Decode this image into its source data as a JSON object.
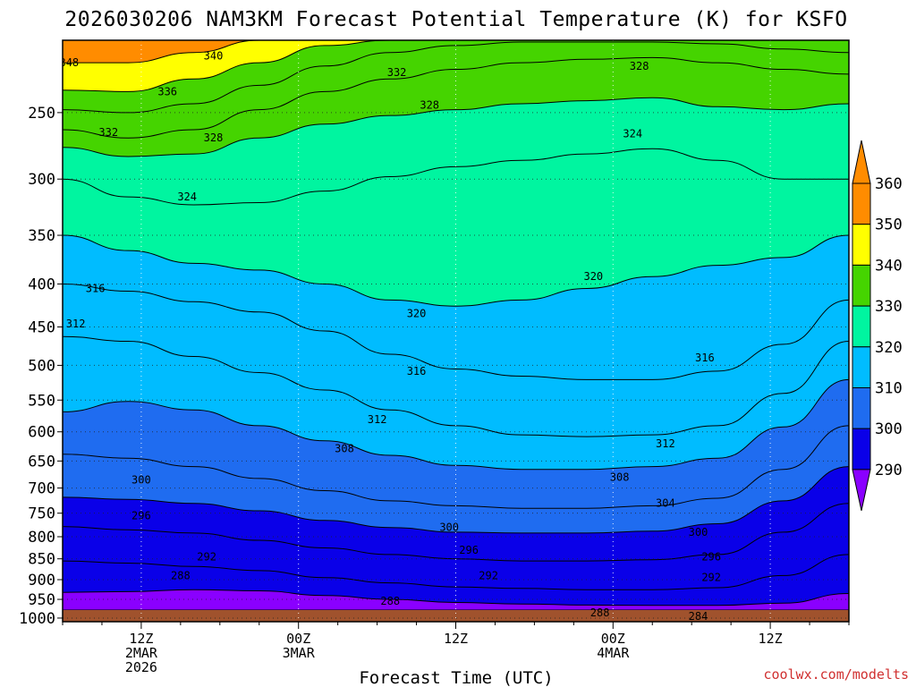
{
  "chart_data": {
    "type": "heatmap",
    "title": "2026030206 NAM3KM Forecast Potential Temperature (K) for KSFO",
    "xlabel": "Forecast Time (UTC)",
    "ylabel": "",
    "y_scale": "log",
    "y_axis": "pressure (hPa), inverted",
    "ylim": [
      1010,
      205
    ],
    "y_ticks": [
      250,
      300,
      350,
      400,
      450,
      500,
      550,
      600,
      650,
      700,
      750,
      800,
      850,
      900,
      950,
      1000
    ],
    "xlim": [
      0,
      60
    ],
    "x_ticks": [
      {
        "hour": 6,
        "lines": [
          "12Z",
          "2MAR",
          "2026"
        ]
      },
      {
        "hour": 18,
        "lines": [
          "00Z",
          "3MAR"
        ]
      },
      {
        "hour": 30,
        "lines": [
          "12Z"
        ]
      },
      {
        "hour": 42,
        "lines": [
          "00Z",
          "4MAR"
        ]
      },
      {
        "hour": 54,
        "lines": [
          "12Z"
        ]
      }
    ],
    "grid": true,
    "colorbar": {
      "levels": [
        290,
        300,
        310,
        320,
        330,
        340,
        350,
        360
      ],
      "colors": [
        "#8a00ff",
        "#0a00e8",
        "#1f6cf0",
        "#00bcff",
        "#00f5a0",
        "#45d400",
        "#ffff00",
        "#ff8c00"
      ],
      "extend": "both",
      "placement": "right"
    },
    "isotherms": [
      {
        "theta": 284,
        "p": [
          1000,
          1000,
          1000,
          1000,
          1000,
          1000,
          1000,
          1000,
          1000,
          1000,
          998,
          996,
          995
        ]
      },
      {
        "theta": 288,
        "p": [
          932,
          930,
          925,
          928,
          940,
          950,
          958,
          962,
          965,
          966,
          966,
          960,
          935
        ]
      },
      {
        "theta": 292,
        "p": [
          855,
          860,
          868,
          878,
          895,
          908,
          918,
          922,
          925,
          925,
          920,
          890,
          840
        ]
      },
      {
        "theta": 296,
        "p": [
          778,
          785,
          792,
          808,
          825,
          840,
          850,
          855,
          855,
          852,
          840,
          790,
          730
        ]
      },
      {
        "theta": 300,
        "p": [
          718,
          722,
          730,
          745,
          765,
          780,
          790,
          792,
          792,
          788,
          772,
          725,
          660
        ]
      },
      {
        "theta": 304,
        "p": [
          638,
          645,
          660,
          682,
          705,
          725,
          735,
          740,
          740,
          735,
          720,
          665,
          590
        ]
      },
      {
        "theta": 308,
        "p": [
          568,
          552,
          565,
          590,
          615,
          640,
          658,
          665,
          665,
          660,
          645,
          592,
          520
        ]
      },
      {
        "theta": 312,
        "p": [
          462,
          468,
          488,
          510,
          535,
          565,
          590,
          605,
          608,
          605,
          590,
          540,
          468
        ]
      },
      {
        "theta": 316,
        "p": [
          400,
          408,
          420,
          432,
          455,
          485,
          505,
          515,
          520,
          520,
          508,
          472,
          418
        ]
      },
      {
        "theta": 320,
        "p": [
          350,
          365,
          378,
          385,
          400,
          418,
          425,
          418,
          405,
          392,
          380,
          372,
          350
        ]
      },
      {
        "theta": 324,
        "p": [
          300,
          315,
          322,
          320,
          310,
          298,
          290,
          285,
          280,
          276,
          285,
          300,
          300
        ]
      },
      {
        "theta": 328,
        "p": [
          275,
          282,
          280,
          268,
          258,
          252,
          248,
          244,
          242,
          240,
          246,
          248,
          244
        ]
      },
      {
        "theta": 332,
        "p": [
          262,
          268,
          262,
          248,
          236,
          228,
          222,
          218,
          216,
          215,
          218,
          222,
          225
        ]
      },
      {
        "theta": 336,
        "p": [
          248,
          250,
          244,
          232,
          220,
          212,
          208,
          206,
          206,
          206,
          207,
          210,
          212
        ]
      },
      {
        "theta": 340,
        "p": [
          235,
          236,
          228,
          218,
          208,
          205,
          205,
          205,
          205,
          205,
          205,
          205,
          205
        ]
      },
      {
        "theta": 348,
        "p": [
          218,
          218,
          212,
          205,
          205,
          205,
          205,
          205,
          205,
          205,
          205,
          205,
          205
        ]
      }
    ],
    "isotherm_hours": [
      0,
      5,
      10,
      15,
      20,
      25,
      30,
      35,
      40,
      45,
      50,
      55,
      60
    ],
    "contour_labels": [
      {
        "text": "348",
        "hour": 0.5,
        "p": 218
      },
      {
        "text": "340",
        "hour": 11.5,
        "p": 214
      },
      {
        "text": "336",
        "hour": 8,
        "p": 236
      },
      {
        "text": "332",
        "hour": 25.5,
        "p": 224
      },
      {
        "text": "328",
        "hour": 44,
        "p": 220
      },
      {
        "text": "332",
        "hour": 3.5,
        "p": 264
      },
      {
        "text": "328",
        "hour": 11.5,
        "p": 268
      },
      {
        "text": "328",
        "hour": 28,
        "p": 245
      },
      {
        "text": "324",
        "hour": 43.5,
        "p": 265
      },
      {
        "text": "324",
        "hour": 9.5,
        "p": 315
      },
      {
        "text": "320",
        "hour": 40.5,
        "p": 392
      },
      {
        "text": "320",
        "hour": 27,
        "p": 434
      },
      {
        "text": "316",
        "hour": 2.5,
        "p": 405
      },
      {
        "text": "312",
        "hour": 1,
        "p": 446
      },
      {
        "text": "316",
        "hour": 27,
        "p": 508
      },
      {
        "text": "316",
        "hour": 49,
        "p": 490
      },
      {
        "text": "312",
        "hour": 24,
        "p": 580
      },
      {
        "text": "312",
        "hour": 46,
        "p": 620
      },
      {
        "text": "308",
        "hour": 21.5,
        "p": 628
      },
      {
        "text": "308",
        "hour": 42.5,
        "p": 680
      },
      {
        "text": "304",
        "hour": 46,
        "p": 730
      },
      {
        "text": "300",
        "hour": 6,
        "p": 685
      },
      {
        "text": "300",
        "hour": 29.5,
        "p": 780
      },
      {
        "text": "300",
        "hour": 48.5,
        "p": 790
      },
      {
        "text": "296",
        "hour": 6,
        "p": 755
      },
      {
        "text": "296",
        "hour": 31,
        "p": 830
      },
      {
        "text": "296",
        "hour": 49.5,
        "p": 845
      },
      {
        "text": "292",
        "hour": 11,
        "p": 845
      },
      {
        "text": "292",
        "hour": 32.5,
        "p": 890
      },
      {
        "text": "292",
        "hour": 49.5,
        "p": 895
      },
      {
        "text": "288",
        "hour": 9,
        "p": 890
      },
      {
        "text": "288",
        "hour": 25,
        "p": 955
      },
      {
        "text": "288",
        "hour": 41,
        "p": 985
      },
      {
        "text": "284",
        "hour": 48.5,
        "p": 995
      }
    ],
    "ground_color": "#a0522d"
  },
  "credit": "coolwx.com/modelts"
}
